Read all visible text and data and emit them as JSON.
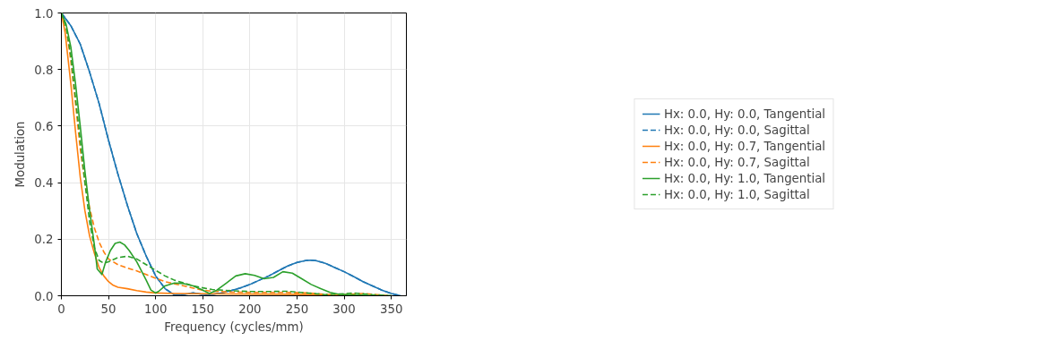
{
  "chart_data": {
    "type": "line",
    "xlabel": "Frequency (cycles/mm)",
    "ylabel": "Modulation",
    "xlim": [
      0,
      366
    ],
    "ylim": [
      0,
      1
    ],
    "xticks": [
      0,
      50,
      100,
      150,
      200,
      250,
      300,
      350
    ],
    "yticks": [
      {
        "value": 0,
        "label": "0.0"
      },
      0.2,
      0.4,
      0.6,
      0.8,
      {
        "value": 1,
        "label": "1.0"
      }
    ],
    "grid": true,
    "legend": "right",
    "marker": "none",
    "series": [
      {
        "name": "Hx: 0.0, Hy: 0.0, Tangential",
        "color": "#1f77b4",
        "line_style": "solid",
        "x": [
          0,
          10,
          20,
          30,
          40,
          50,
          60,
          70,
          80,
          90,
          100,
          110,
          120,
          130,
          140,
          150,
          160,
          170,
          180,
          190,
          200,
          210,
          220,
          230,
          240,
          250,
          260,
          265,
          270,
          280,
          290,
          300,
          310,
          320,
          330,
          340,
          350,
          360
        ],
        "values": [
          1,
          0.955,
          0.89,
          0.79,
          0.68,
          0.55,
          0.43,
          0.32,
          0.22,
          0.14,
          0.07,
          0.025,
          0.003,
          0.005,
          0.01,
          0.005,
          0.005,
          0.01,
          0.018,
          0.028,
          0.04,
          0.055,
          0.07,
          0.088,
          0.105,
          0.118,
          0.125,
          0.126,
          0.124,
          0.115,
          0.1,
          0.085,
          0.068,
          0.05,
          0.035,
          0.02,
          0.008,
          0
        ]
      },
      {
        "name": "Hx: 0.0, Hy: 0.0, Sagittal",
        "color": "#1f77b4",
        "line_style": "dashed",
        "x": [
          0,
          10,
          20,
          30,
          40,
          50,
          60,
          70,
          80,
          90,
          100,
          110,
          120,
          130,
          140,
          150,
          160,
          170,
          180,
          190,
          200,
          210,
          220,
          230,
          240,
          250,
          260,
          265,
          270,
          280,
          290,
          300,
          310,
          320,
          330,
          340,
          350,
          360
        ],
        "values": [
          1,
          0.955,
          0.89,
          0.79,
          0.68,
          0.55,
          0.43,
          0.32,
          0.22,
          0.14,
          0.07,
          0.025,
          0.003,
          0.005,
          0.01,
          0.005,
          0.005,
          0.01,
          0.018,
          0.028,
          0.04,
          0.055,
          0.07,
          0.088,
          0.105,
          0.118,
          0.125,
          0.126,
          0.124,
          0.115,
          0.1,
          0.085,
          0.068,
          0.05,
          0.035,
          0.02,
          0.008,
          0
        ]
      },
      {
        "name": "Hx: 0.0, Hy: 0.7, Tangential",
        "color": "#ff7f0e",
        "line_style": "solid",
        "x": [
          0,
          4,
          10,
          15,
          20,
          25,
          30,
          35,
          40,
          45,
          50,
          55,
          60,
          70,
          80,
          90,
          100,
          120,
          150,
          200,
          250,
          280,
          300
        ],
        "values": [
          1,
          0.93,
          0.75,
          0.58,
          0.42,
          0.3,
          0.21,
          0.15,
          0.1,
          0.07,
          0.05,
          0.037,
          0.03,
          0.025,
          0.018,
          0.013,
          0.01,
          0.008,
          0.007,
          0.006,
          0.005,
          0.002,
          0
        ]
      },
      {
        "name": "Hx: 0.0, Hy: 0.7, Sagittal",
        "color": "#ff7f0e",
        "line_style": "dashed",
        "x": [
          0,
          5,
          10,
          15,
          20,
          25,
          30,
          35,
          40,
          45,
          50,
          60,
          70,
          80,
          90,
          100,
          110,
          120,
          130,
          140,
          150,
          160,
          180,
          200,
          220,
          240,
          260,
          280,
          300,
          320,
          340,
          350
        ],
        "values": [
          1,
          0.95,
          0.83,
          0.68,
          0.52,
          0.4,
          0.31,
          0.24,
          0.19,
          0.155,
          0.13,
          0.11,
          0.098,
          0.088,
          0.075,
          0.062,
          0.05,
          0.042,
          0.035,
          0.027,
          0.02,
          0.016,
          0.013,
          0.012,
          0.012,
          0.012,
          0.01,
          0.005,
          0.004,
          0.008,
          0.002,
          0
        ]
      },
      {
        "name": "Hx: 0.0, Hy: 1.0, Tangential",
        "color": "#2ca02c",
        "line_style": "solid",
        "x": [
          0,
          5,
          10,
          15,
          20,
          25,
          30,
          35,
          38,
          43,
          47,
          52,
          57,
          62,
          67,
          72,
          80,
          90,
          95,
          100,
          103,
          110,
          120,
          130,
          140,
          150,
          157,
          165,
          175,
          185,
          195,
          205,
          215,
          225,
          235,
          245,
          255,
          265,
          275,
          285,
          295,
          310,
          330,
          350
        ],
        "values": [
          1,
          0.96,
          0.88,
          0.75,
          0.6,
          0.44,
          0.3,
          0.18,
          0.095,
          0.075,
          0.12,
          0.16,
          0.185,
          0.19,
          0.18,
          0.16,
          0.12,
          0.055,
          0.02,
          0.01,
          0.015,
          0.035,
          0.045,
          0.043,
          0.035,
          0.02,
          0.008,
          0.02,
          0.045,
          0.07,
          0.078,
          0.072,
          0.06,
          0.065,
          0.085,
          0.08,
          0.06,
          0.04,
          0.025,
          0.012,
          0.005,
          0.003,
          0.001,
          0
        ]
      },
      {
        "name": "Hx: 0.0, Hy: 1.0, Sagittal",
        "color": "#2ca02c",
        "line_style": "dashed",
        "x": [
          0,
          5,
          10,
          15,
          20,
          25,
          30,
          35,
          40,
          45,
          50,
          60,
          70,
          80,
          90,
          100,
          110,
          120,
          130,
          140,
          150,
          160,
          180,
          200,
          220,
          240,
          260,
          280,
          300,
          310,
          330,
          350
        ],
        "values": [
          1,
          0.95,
          0.85,
          0.7,
          0.55,
          0.4,
          0.26,
          0.17,
          0.125,
          0.115,
          0.12,
          0.135,
          0.14,
          0.13,
          0.11,
          0.09,
          0.07,
          0.055,
          0.045,
          0.035,
          0.028,
          0.022,
          0.018,
          0.015,
          0.015,
          0.016,
          0.01,
          0.004,
          0.007,
          0.01,
          0.004,
          0
        ]
      }
    ]
  }
}
